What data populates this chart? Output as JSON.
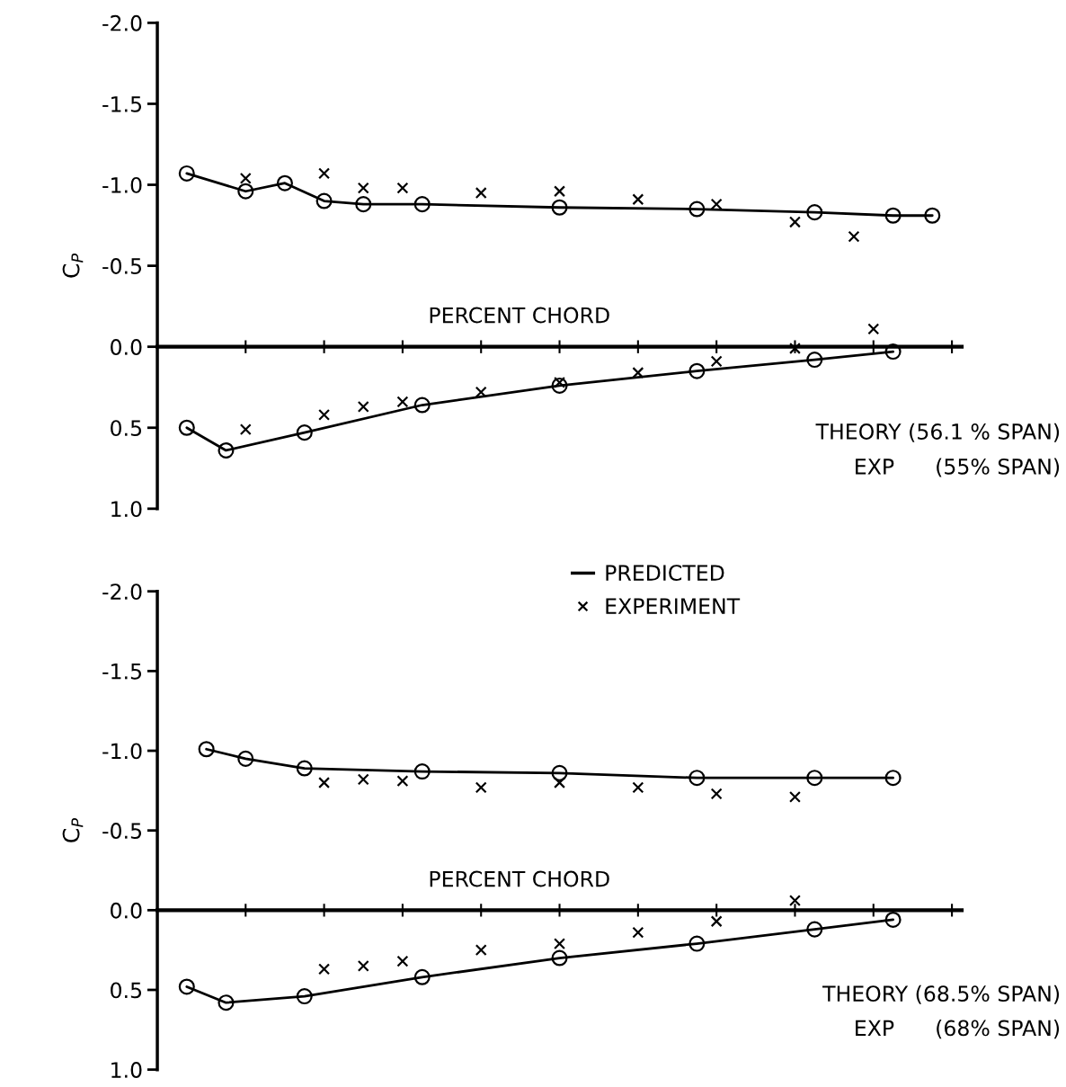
{
  "chart_data": [
    {
      "type": "line",
      "ylabel": "C$_{P}$",
      "xlabel": "PERCENT CHORD",
      "ylim": [
        1.0,
        -2.0
      ],
      "categories": [
        null,
        null,
        null,
        null,
        null,
        null,
        null,
        null,
        null,
        null,
        null,
        null,
        null,
        null,
        null,
        null,
        null,
        null,
        null,
        null,
        null,
        null,
        null,
        null,
        null,
        null,
        null,
        null,
        null,
        null,
        null,
        null,
        null,
        null,
        null,
        null,
        null,
        null,
        null,
        null,
        null
      ],
      "yticks": [
        {
          "value": -2,
          "label": "-2.0"
        },
        {
          "value": -1.5,
          "label": "-1.5"
        },
        {
          "value": -1,
          "label": "-1.0"
        },
        {
          "value": -0.5,
          "label": "-0.5"
        },
        {
          "value": 0,
          "label": "0.0"
        },
        {
          "value": 0.5,
          "label": "0.5"
        },
        {
          "value": 1,
          "label": "1.0"
        }
      ],
      "annotations": [
        "THEORY (56.1 % SPAN)",
        "EXP      (55% SPAN)"
      ],
      "series": [
        {
          "marker": "circle",
          "color": "#000000",
          "values": [
            null,
            -1.07,
            null,
            null,
            -0.96,
            null,
            -1.01,
            null,
            -0.9,
            null,
            -0.88,
            null,
            null,
            -0.88,
            null,
            null,
            null,
            null,
            null,
            null,
            -0.86,
            null,
            null,
            null,
            null,
            null,
            null,
            -0.85,
            null,
            null,
            null,
            null,
            null,
            -0.83,
            null,
            null,
            null,
            -0.81,
            null,
            -0.81,
            null
          ]
        },
        {
          "marker": "circle",
          "color": "#000000",
          "values": [
            null,
            0.5,
            null,
            0.64,
            null,
            null,
            null,
            0.53,
            null,
            null,
            null,
            null,
            null,
            0.36,
            null,
            null,
            null,
            null,
            null,
            null,
            0.24,
            null,
            null,
            null,
            null,
            null,
            null,
            0.15,
            null,
            null,
            null,
            null,
            null,
            0.08,
            null,
            null,
            null,
            0.03,
            null,
            null,
            null
          ]
        },
        {
          "type": "scatter",
          "marker": "cross",
          "color": "#000000",
          "values": [
            null,
            null,
            null,
            null,
            -1.04,
            null,
            null,
            null,
            -1.07,
            null,
            -0.98,
            null,
            -0.98,
            null,
            null,
            null,
            -0.95,
            null,
            null,
            null,
            -0.96,
            null,
            null,
            null,
            -0.91,
            null,
            null,
            null,
            -0.88,
            null,
            null,
            null,
            -0.77,
            null,
            null,
            -0.68,
            null,
            null,
            null,
            null,
            null
          ]
        },
        {
          "type": "scatter",
          "marker": "cross",
          "color": "#000000",
          "values": [
            null,
            null,
            null,
            null,
            0.51,
            null,
            null,
            null,
            0.42,
            null,
            0.37,
            null,
            0.34,
            null,
            null,
            null,
            0.28,
            null,
            null,
            null,
            0.22,
            null,
            null,
            null,
            0.16,
            null,
            null,
            null,
            0.09,
            null,
            null,
            null,
            0.01,
            null,
            null,
            null,
            -0.11,
            null,
            null,
            null,
            null
          ]
        }
      ]
    },
    {
      "type": "line",
      "ylabel": "C$_{P}$",
      "xlabel": "PERCENT CHORD",
      "ylim": [
        1.0,
        -2.0
      ],
      "categories": [
        null,
        null,
        null,
        null,
        null,
        null,
        null,
        null,
        null,
        null,
        null,
        null,
        null,
        null,
        null,
        null,
        null,
        null,
        null,
        null,
        null,
        null,
        null,
        null,
        null,
        null,
        null,
        null,
        null,
        null,
        null,
        null,
        null,
        null,
        null,
        null,
        null,
        null,
        null,
        null,
        null
      ],
      "yticks": [
        {
          "value": -2,
          "label": "-2.0"
        },
        {
          "value": -1.5,
          "label": "-1.5"
        },
        {
          "value": -1,
          "label": "-1.0"
        },
        {
          "value": -0.5,
          "label": "-0.5"
        },
        {
          "value": 0,
          "label": "0.0"
        },
        {
          "value": 0.5,
          "label": "0.5"
        },
        {
          "value": 1,
          "label": "1.0"
        }
      ],
      "annotations": [
        "THEORY (68.5% SPAN)",
        "EXP      (68% SPAN)"
      ],
      "legend": "top",
      "series": [
        {
          "name": "PREDICTED",
          "marker": "circle",
          "color": "#000000",
          "values": [
            null,
            null,
            -1.01,
            null,
            -0.95,
            null,
            null,
            -0.89,
            null,
            null,
            null,
            null,
            null,
            -0.87,
            null,
            null,
            null,
            null,
            null,
            null,
            -0.86,
            null,
            null,
            null,
            null,
            null,
            null,
            -0.83,
            null,
            null,
            null,
            null,
            null,
            -0.83,
            null,
            null,
            null,
            -0.83,
            null,
            null,
            null
          ]
        },
        {
          "marker": "circle",
          "color": "#000000",
          "values": [
            null,
            0.48,
            null,
            0.58,
            null,
            null,
            null,
            0.54,
            null,
            null,
            null,
            null,
            null,
            0.42,
            null,
            null,
            null,
            null,
            null,
            null,
            0.3,
            null,
            null,
            null,
            null,
            null,
            null,
            0.21,
            null,
            null,
            null,
            null,
            null,
            0.12,
            null,
            null,
            null,
            0.06,
            null,
            null,
            null
          ]
        },
        {
          "type": "scatter",
          "name": "EXPERIMENT",
          "marker": "cross",
          "color": "#000000",
          "values": [
            null,
            null,
            null,
            null,
            null,
            null,
            null,
            null,
            -0.8,
            null,
            -0.82,
            null,
            -0.81,
            null,
            null,
            null,
            -0.77,
            null,
            null,
            null,
            -0.8,
            null,
            null,
            null,
            -0.77,
            null,
            null,
            null,
            -0.73,
            null,
            null,
            null,
            -0.71,
            null,
            null,
            null,
            null,
            null,
            null,
            null,
            null
          ]
        },
        {
          "type": "scatter",
          "marker": "cross",
          "color": "#000000",
          "values": [
            null,
            null,
            null,
            null,
            null,
            null,
            null,
            null,
            0.37,
            null,
            0.35,
            null,
            0.32,
            null,
            null,
            null,
            0.25,
            null,
            null,
            null,
            0.21,
            null,
            null,
            null,
            0.14,
            null,
            null,
            null,
            0.07,
            null,
            null,
            null,
            -0.06,
            null,
            null,
            null,
            null,
            null,
            null,
            null,
            null
          ]
        }
      ]
    }
  ]
}
